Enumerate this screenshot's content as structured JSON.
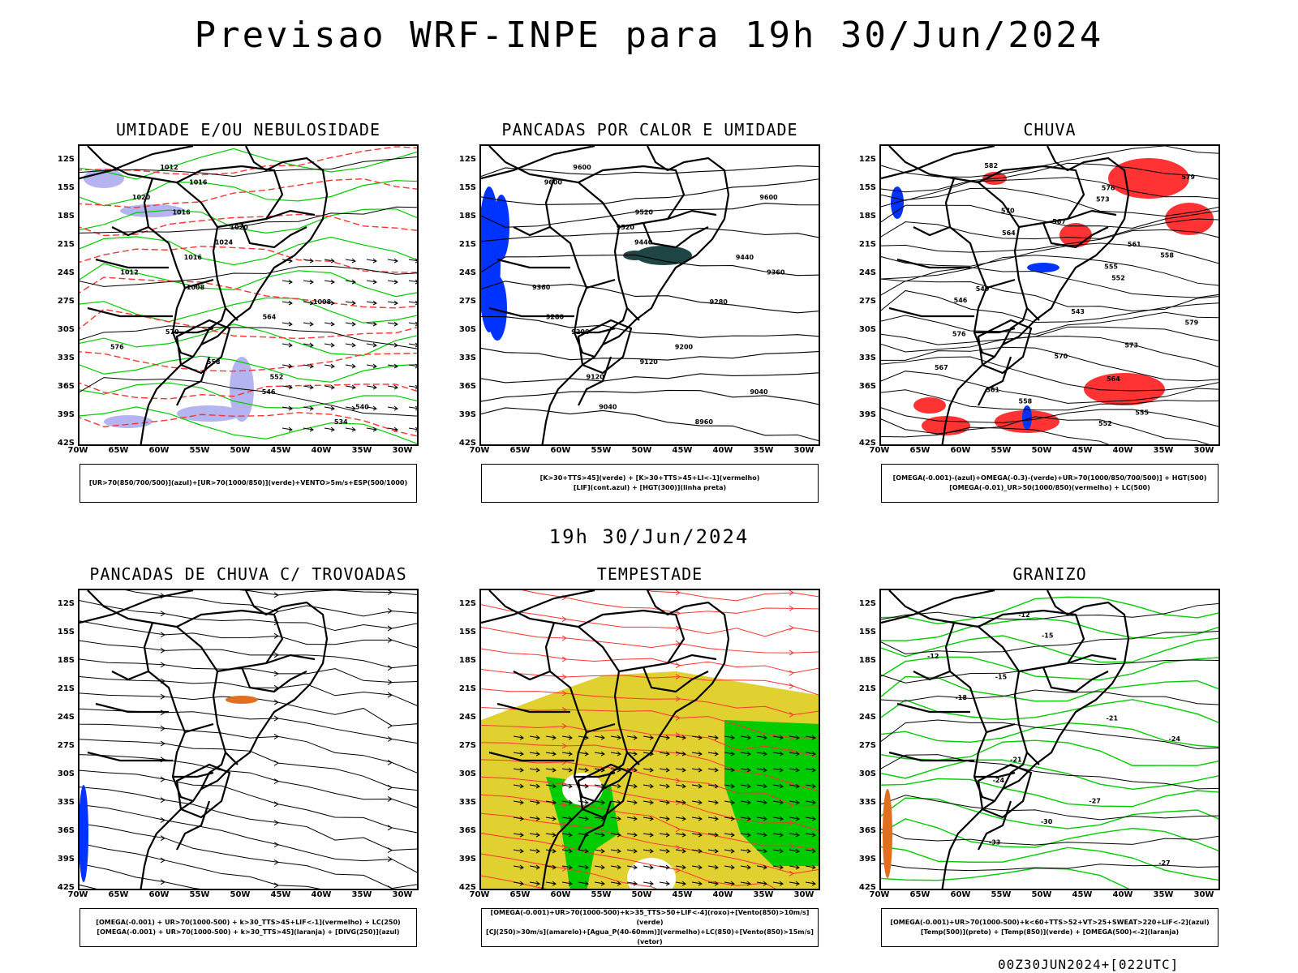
{
  "header": {
    "title": "Previsao WRF-INPE  para 19h 30/Jun/2024"
  },
  "middle_label": "19h 30/Jun/2024",
  "footer": "00Z30JUN2024+[022UTC]",
  "axes": {
    "lat_ticks": [
      "12S",
      "15S",
      "18S",
      "21S",
      "24S",
      "27S",
      "30S",
      "33S",
      "36S",
      "39S",
      "42S"
    ],
    "lon_ticks": [
      "70W",
      "65W",
      "60W",
      "55W",
      "50W",
      "45W",
      "40W",
      "35W",
      "30W"
    ]
  },
  "panels": [
    {
      "title": "UMIDADE E/OU NEBULOSIDADE",
      "legend": [
        "[UR>70(850/700/500)](azul)+[UR>70(1000/850)](verde)+VENTO>5m/s+ESP(500/1000)"
      ],
      "contour_labels": [
        "1012",
        "1016",
        "1020",
        "1016",
        "1020",
        "1024",
        "1016",
        "1012",
        "1008",
        "1008",
        "564",
        "570",
        "576",
        "558",
        "552",
        "546",
        "540",
        "534"
      ]
    },
    {
      "title": "PANCADAS POR CALOR E UMIDADE",
      "legend": [
        "[K>30+TTS>45](verde) + [K>30+TTS>45+LI<-1](vermelho)",
        "[LIF](cont.azul) + [HGT(300)](linha preta)"
      ],
      "contour_labels": [
        "9600",
        "9600",
        "9600",
        "9520",
        "9520",
        "9440",
        "9440",
        "9360",
        "9360",
        "9280",
        "9280",
        "9200",
        "9200",
        "9120",
        "9120",
        "9040",
        "9040",
        "8960"
      ]
    },
    {
      "title": "CHUVA",
      "legend": [
        "[OMEGA(-0.001)-(azul)+OMEGA(-0.3)-(verde)+UR>70(1000/850/700/500)] + HGT(500)",
        "[OMEGA(-0.01)_UR>50(1000/850)(vermelho) + LC(500)"
      ],
      "contour_labels": [
        "582",
        "579",
        "576",
        "573",
        "570",
        "567",
        "564",
        "561",
        "558",
        "555",
        "552",
        "549",
        "546",
        "543",
        "579",
        "576",
        "573",
        "570",
        "567",
        "564",
        "561",
        "558",
        "555",
        "552"
      ]
    },
    {
      "title": "PANCADAS DE CHUVA C/ TROVOADAS",
      "legend": [
        "[OMEGA(-0.001) + UR>70(1000-500) + k>30_TTS>45+LIF<-1](vermelho) + LC(250)",
        "[OMEGA(-0.001) + UR>70(1000-500) + k>30_TTS>45](laranja) + [DIVG(250)](azul)"
      ],
      "contour_labels": []
    },
    {
      "title": "TEMPESTADE",
      "legend": [
        "[OMEGA(-0.001)+UR>70(1000-500)+k>35_TTS>50+LIF<-4](roxo)+[Vento(850)>10m/s](verde)",
        "[CJ(250)>30m/s](amarelo)+[Agua_P(40-60mm)](vermelho)+LC(850)+[Vento(850)>15m/s](vetor)"
      ],
      "contour_labels": []
    },
    {
      "title": "GRANIZO",
      "legend": [
        "[OMEGA(-0.001)+UR>70(1000-500)+k<60+TTS>52+VT>25+SWEAT>220+LIF<-2](azul)",
        "[Temp(500)](preto) + [Temp(850)](verde) + [OMEGA(500)<-2](laranja)"
      ],
      "contour_labels": [
        "-12",
        "-15",
        "-12",
        "-15",
        "-18",
        "-21",
        "-24",
        "-21",
        "-24",
        "-27",
        "-30",
        "-33",
        "-27"
      ]
    }
  ],
  "colors": {
    "blue": "#0033ff",
    "green": "#00cc00",
    "red": "#ff3333",
    "lavender": "#b4b4f0",
    "yellow": "#e0d030",
    "dark_teal": "#1f4545",
    "orange": "#e07020"
  }
}
